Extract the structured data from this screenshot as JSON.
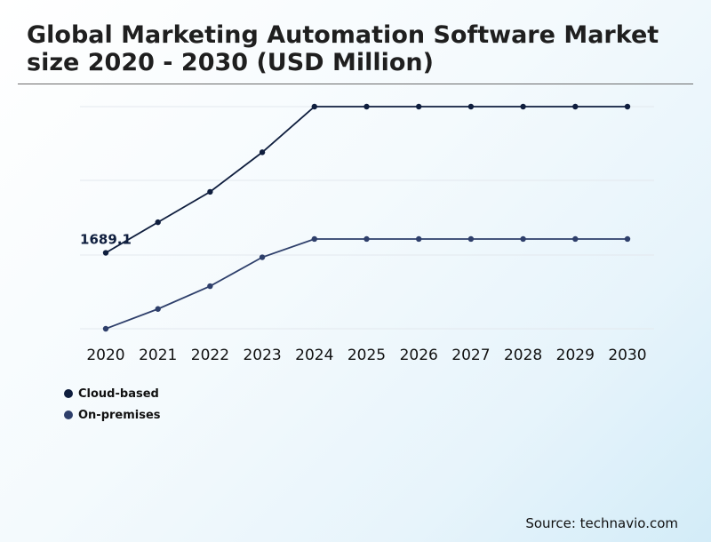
{
  "header": {
    "title": "Global Marketing Automation Software Market size 2020 - 2030 (USD Million)"
  },
  "source": "Source: technavio.com",
  "colors": {
    "cloud": "#0f1e3e",
    "onprem": "#2e3f6b",
    "grid": "#e3e8ee"
  },
  "chart_data": {
    "type": "line",
    "title": "Global Marketing Automation Software Market size 2020 - 2030 (USD Million)",
    "categories": [
      "2020",
      "2021",
      "2022",
      "2023",
      "2024",
      "2025",
      "2026",
      "2027",
      "2028",
      "2029",
      "2030"
    ],
    "series": [
      {
        "name": "Cloud-based",
        "color": "#0f1e3e",
        "values": [
          1689.1,
          1890,
          2090,
          2350,
          2650,
          2650,
          2650,
          2650,
          2650,
          2650,
          2650
        ]
      },
      {
        "name": "On-premises",
        "color": "#2e3f6b",
        "values": [
          1190,
          1320,
          1470,
          1660,
          1780,
          1780,
          1780,
          1780,
          1780,
          1780,
          1780
        ]
      }
    ],
    "annotations": [
      {
        "series": 0,
        "index": 0,
        "text": "1689.1"
      }
    ],
    "ylim": [
      1190,
      2650
    ],
    "grid": true,
    "legend_position": "bottom-left"
  }
}
